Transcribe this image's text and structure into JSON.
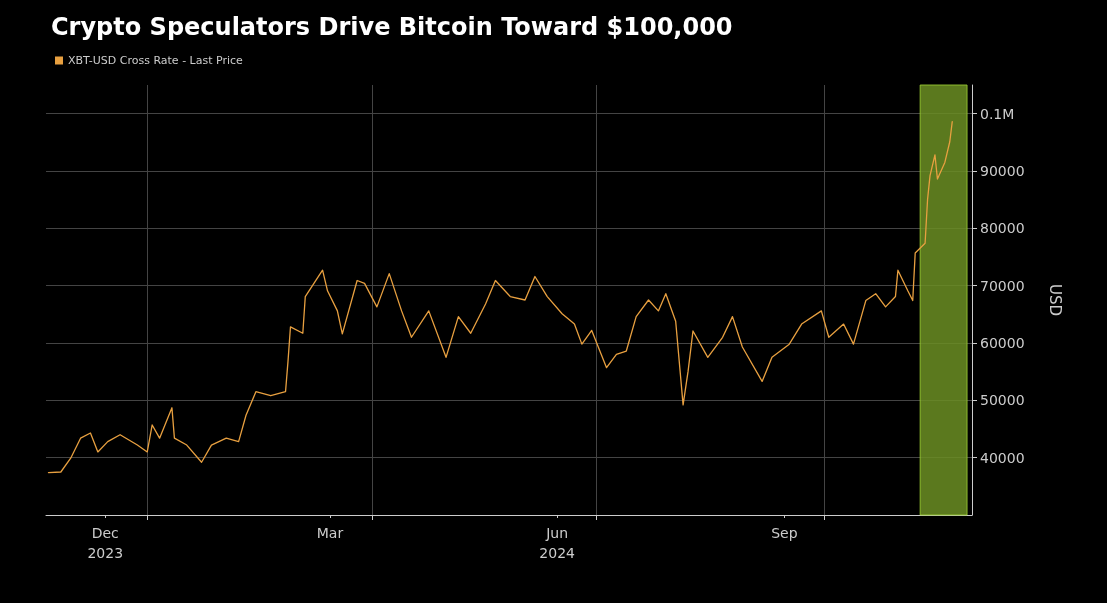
{
  "chart_data": {
    "type": "line",
    "title": "Crypto Speculators Drive Bitcoin Toward $100,000",
    "ylabel": "USD",
    "xlim": [
      "2023-11-21",
      "2024-11-30"
    ],
    "xticks": [
      {
        "value": "2023-12-15",
        "label": "Dec\n2023"
      },
      {
        "value": "2024-01-01",
        "label": null
      },
      {
        "value": "2024-03-15",
        "label": "Mar"
      },
      {
        "value": "2024-04-01",
        "label": null
      },
      {
        "value": "2024-06-15",
        "label": "Jun\n2024"
      },
      {
        "value": "2024-07-01",
        "label": null
      },
      {
        "value": "2024-09-15",
        "label": "Sep"
      },
      {
        "value": "2024-10-01",
        "label": null
      }
    ],
    "ylim": [
      30000,
      105000
    ],
    "yticks": [
      40000,
      50000,
      60000,
      70000,
      80000,
      90000,
      {
        "value": 100000,
        "label": "0.1M"
      }
    ],
    "grid": true,
    "legend": "top left",
    "marker": "none",
    "line_style": "solid",
    "bands": [
      {
        "axis": "x",
        "from": "2024-11-09",
        "to": "2024-11-28",
        "color": "#6b8e23"
      }
    ],
    "series": [
      {
        "name": "XBT-USD Cross Rate - Last Price",
        "color": "#e8a040",
        "x": [
          "2023-11-22",
          "2023-11-27",
          "2023-12-01",
          "2023-12-05",
          "2023-12-09",
          "2023-12-12",
          "2023-12-16",
          "2023-12-21",
          "2023-12-28",
          "2024-01-01",
          "2024-01-03",
          "2024-01-06",
          "2024-01-11",
          "2024-01-12",
          "2024-01-17",
          "2024-01-23",
          "2024-01-27",
          "2024-02-02",
          "2024-02-07",
          "2024-02-10",
          "2024-02-14",
          "2024-02-20",
          "2024-02-26",
          "2024-02-27",
          "2024-02-28",
          "2024-03-04",
          "2024-03-05",
          "2024-03-12",
          "2024-03-14",
          "2024-03-18",
          "2024-03-20",
          "2024-03-26",
          "2024-03-29",
          "2024-04-03",
          "2024-04-08",
          "2024-04-13",
          "2024-04-17",
          "2024-04-24",
          "2024-05-01",
          "2024-05-06",
          "2024-05-11",
          "2024-05-17",
          "2024-05-21",
          "2024-05-27",
          "2024-06-02",
          "2024-06-06",
          "2024-06-11",
          "2024-06-17",
          "2024-06-22",
          "2024-06-25",
          "2024-06-29",
          "2024-07-05",
          "2024-07-09",
          "2024-07-13",
          "2024-07-17",
          "2024-07-22",
          "2024-07-26",
          "2024-07-29",
          "2024-08-02",
          "2024-08-05",
          "2024-08-07",
          "2024-08-09",
          "2024-08-15",
          "2024-08-21",
          "2024-08-25",
          "2024-08-29",
          "2024-09-06",
          "2024-09-10",
          "2024-09-17",
          "2024-09-22",
          "2024-09-30",
          "2024-10-03",
          "2024-10-09",
          "2024-10-13",
          "2024-10-18",
          "2024-10-22",
          "2024-10-26",
          "2024-10-30",
          "2024-10-31",
          "2024-11-04",
          "2024-11-06",
          "2024-11-07",
          "2024-11-11",
          "2024-11-12",
          "2024-11-13",
          "2024-11-15",
          "2024-11-16",
          "2024-11-19",
          "2024-11-21",
          "2024-11-22"
        ],
        "values": [
          37400,
          37500,
          39900,
          43400,
          44300,
          41000,
          42800,
          44000,
          42200,
          41000,
          45700,
          43400,
          48700,
          43400,
          42200,
          39200,
          42200,
          43400,
          42800,
          47400,
          51500,
          50800,
          51500,
          56800,
          62800,
          61700,
          68100,
          72700,
          69100,
          65600,
          61600,
          70900,
          70400,
          66300,
          72100,
          65600,
          61000,
          65600,
          57500,
          64600,
          61700,
          66800,
          70900,
          68100,
          67500,
          71600,
          68100,
          65100,
          63300,
          59800,
          62200,
          55700,
          58000,
          58600,
          64600,
          67500,
          65600,
          68600,
          63800,
          49200,
          55000,
          62100,
          57500,
          61000,
          64600,
          59300,
          53300,
          57500,
          59800,
          63300,
          65600,
          61000,
          63300,
          59800,
          67400,
          68600,
          66300,
          68100,
          72700,
          69100,
          67400,
          75700,
          77400,
          85000,
          89200,
          92800,
          88600,
          91500,
          95100,
          98600
        ]
      }
    ]
  }
}
